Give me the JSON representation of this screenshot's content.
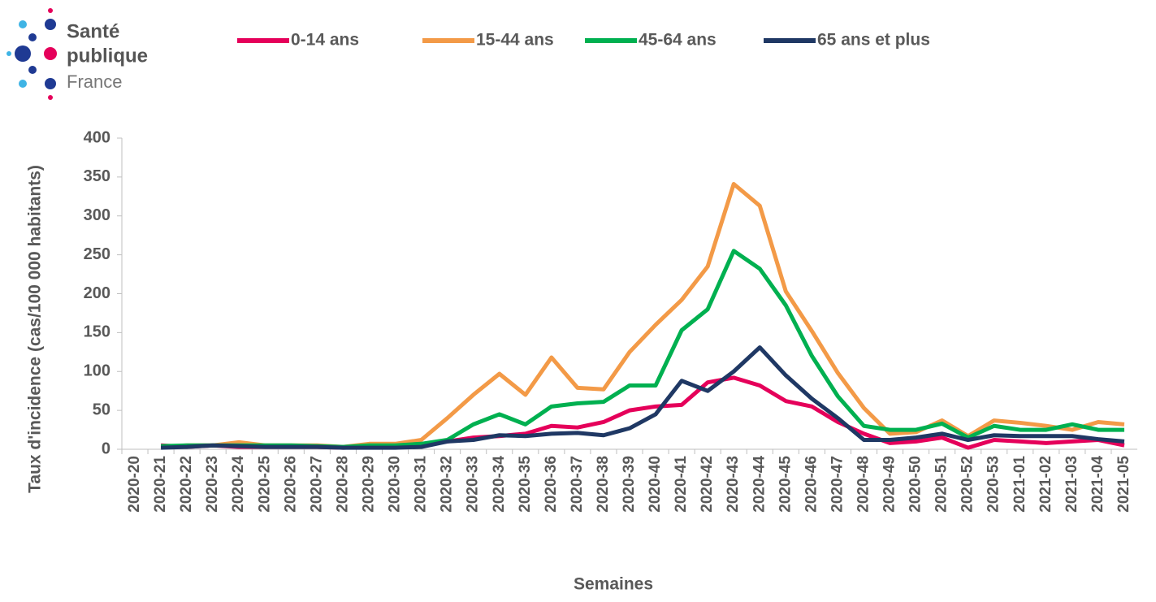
{
  "logo": {
    "line1": "Santé",
    "line2": "publique",
    "line3": "France"
  },
  "chart_data": {
    "type": "line",
    "y_label": "Taux d'incidence  (cas/100 000 habitants)",
    "x_label": "Semaines",
    "categories": [
      "2020-20",
      "2020-21",
      "2020-22",
      "2020-23",
      "2020-24",
      "2020-25",
      "2020-26",
      "2020-27",
      "2020-28",
      "2020-29",
      "2020-30",
      "2020-31",
      "2020-32",
      "2020-33",
      "2020-34",
      "2020-35",
      "2020-36",
      "2020-37",
      "2020-38",
      "2020-39",
      "2020-40",
      "2020-41",
      "2020-42",
      "2020-43",
      "2020-44",
      "2020-45",
      "2020-46",
      "2020-47",
      "2020-48",
      "2020-49",
      "2020-50",
      "2020-51",
      "2020-52",
      "2020-53",
      "2021-01",
      "2021-02",
      "2021-03",
      "2021-04",
      "2021-05"
    ],
    "series": [
      {
        "name": "0-14 ans",
        "color": "#e5005a",
        "values": [
          null,
          5,
          3,
          5,
          3,
          3,
          3,
          3,
          2,
          3,
          3,
          5,
          10,
          15,
          17,
          20,
          30,
          28,
          35,
          50,
          55,
          57,
          86,
          92,
          82,
          62,
          55,
          35,
          20,
          8,
          10,
          15,
          2,
          12,
          10,
          8,
          10,
          12,
          5
        ]
      },
      {
        "name": "15-44 ans",
        "color": "#f39a47",
        "values": [
          null,
          3,
          5,
          5,
          9,
          5,
          5,
          5,
          3,
          7,
          7,
          12,
          40,
          70,
          97,
          70,
          118,
          79,
          77,
          125,
          160,
          192,
          235,
          341,
          313,
          203,
          152,
          98,
          53,
          20,
          22,
          37,
          17,
          37,
          34,
          30,
          25,
          35,
          32
        ]
      },
      {
        "name": "45-64 ans",
        "color": "#00b050",
        "values": [
          null,
          4,
          5,
          5,
          5,
          5,
          5,
          4,
          3,
          5,
          5,
          7,
          12,
          32,
          45,
          32,
          55,
          59,
          61,
          82,
          82,
          153,
          180,
          255,
          232,
          185,
          120,
          68,
          30,
          25,
          25,
          33,
          15,
          30,
          25,
          25,
          32,
          25,
          25
        ]
      },
      {
        "name": "65 ans et plus",
        "color": "#1f3864",
        "values": [
          null,
          2,
          3,
          5,
          4,
          3,
          3,
          3,
          2,
          2,
          2,
          3,
          10,
          12,
          18,
          17,
          20,
          21,
          18,
          27,
          45,
          88,
          75,
          100,
          131,
          95,
          65,
          40,
          12,
          12,
          15,
          20,
          12,
          18,
          17,
          17,
          17,
          13,
          10
        ]
      }
    ],
    "ylim": [
      0,
      400
    ],
    "yticks": [
      0,
      50,
      100,
      150,
      200,
      250,
      300,
      350,
      400
    ],
    "grid": false
  }
}
